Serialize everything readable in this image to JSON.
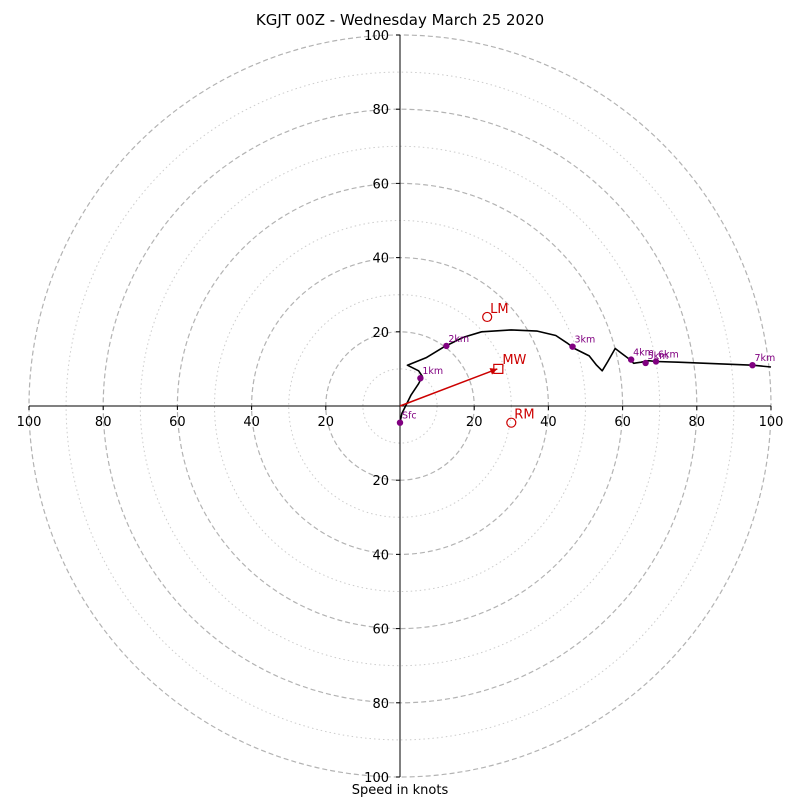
{
  "title": "KGJT 00Z - Wednesday March 25 2020",
  "xlabel": "Speed in knots",
  "colors": {
    "ring_major": "#b3b3b3",
    "ring_minor": "#cccccc",
    "axis": "#000000",
    "trace": "#000000",
    "height_marker": "#800080",
    "storm_motion": "#cc0000"
  },
  "chart_data": {
    "type": "scatter",
    "title": "KGJT 00Z - Wednesday March 25 2020",
    "xlabel": "Speed in knots",
    "ylabel": "",
    "xlim": [
      -100,
      100
    ],
    "ylim": [
      -100,
      100
    ],
    "grid": true,
    "ring_major_values": [
      20,
      40,
      60,
      80,
      100
    ],
    "ring_minor_values": [
      10,
      30,
      50,
      70,
      90
    ],
    "x_tick_labels": [
      "100",
      "80",
      "60",
      "40",
      "20",
      "20",
      "40",
      "60",
      "80",
      "100"
    ],
    "x_tick_values": [
      -100,
      -80,
      -60,
      -40,
      -20,
      20,
      40,
      60,
      80,
      100
    ],
    "y_tick_labels": [
      "100",
      "80",
      "60",
      "40",
      "20",
      "20",
      "40",
      "60",
      "80",
      "100"
    ],
    "y_tick_values": [
      100,
      80,
      60,
      40,
      20,
      -20,
      -40,
      -60,
      -80,
      -100
    ],
    "hodograph_trace": {
      "x": [
        0,
        0.5,
        1.5,
        3,
        5,
        6,
        5,
        2,
        7,
        12,
        17,
        22,
        30,
        37,
        42,
        45,
        47,
        51,
        53,
        54.5,
        56,
        58,
        60,
        62,
        63,
        65,
        67,
        69,
        75,
        85,
        95,
        100
      ],
      "y": [
        -4.5,
        -2,
        0,
        3,
        6,
        8,
        9.5,
        11,
        13,
        16,
        18.5,
        20,
        20.5,
        20.2,
        19,
        17,
        15.5,
        13.5,
        11,
        9.5,
        12,
        15.5,
        14,
        12.5,
        11.5,
        11.8,
        12.2,
        12,
        11.8,
        11.4,
        11,
        10.5
      ]
    },
    "height_markers": [
      {
        "label": "Sfc",
        "x": 0,
        "y": -4.5
      },
      {
        "label": "1km",
        "x": 5.5,
        "y": 7.5
      },
      {
        "label": "2km",
        "x": 12.5,
        "y": 16.2
      },
      {
        "label": "3km",
        "x": 46.5,
        "y": 16
      },
      {
        "label": "4km",
        "x": 62.3,
        "y": 12.5
      },
      {
        "label": "5km",
        "x": 66.2,
        "y": 11.6
      },
      {
        "label": "6km",
        "x": 69,
        "y": 12
      },
      {
        "label": "7km",
        "x": 95,
        "y": 11
      }
    ],
    "storm_motion": {
      "mw": {
        "label": "MW",
        "x": 26.5,
        "y": 10
      },
      "lm": {
        "label": "LM",
        "x": 23.5,
        "y": 24
      },
      "rm": {
        "label": "RM",
        "x": 30,
        "y": -4.5
      }
    }
  }
}
